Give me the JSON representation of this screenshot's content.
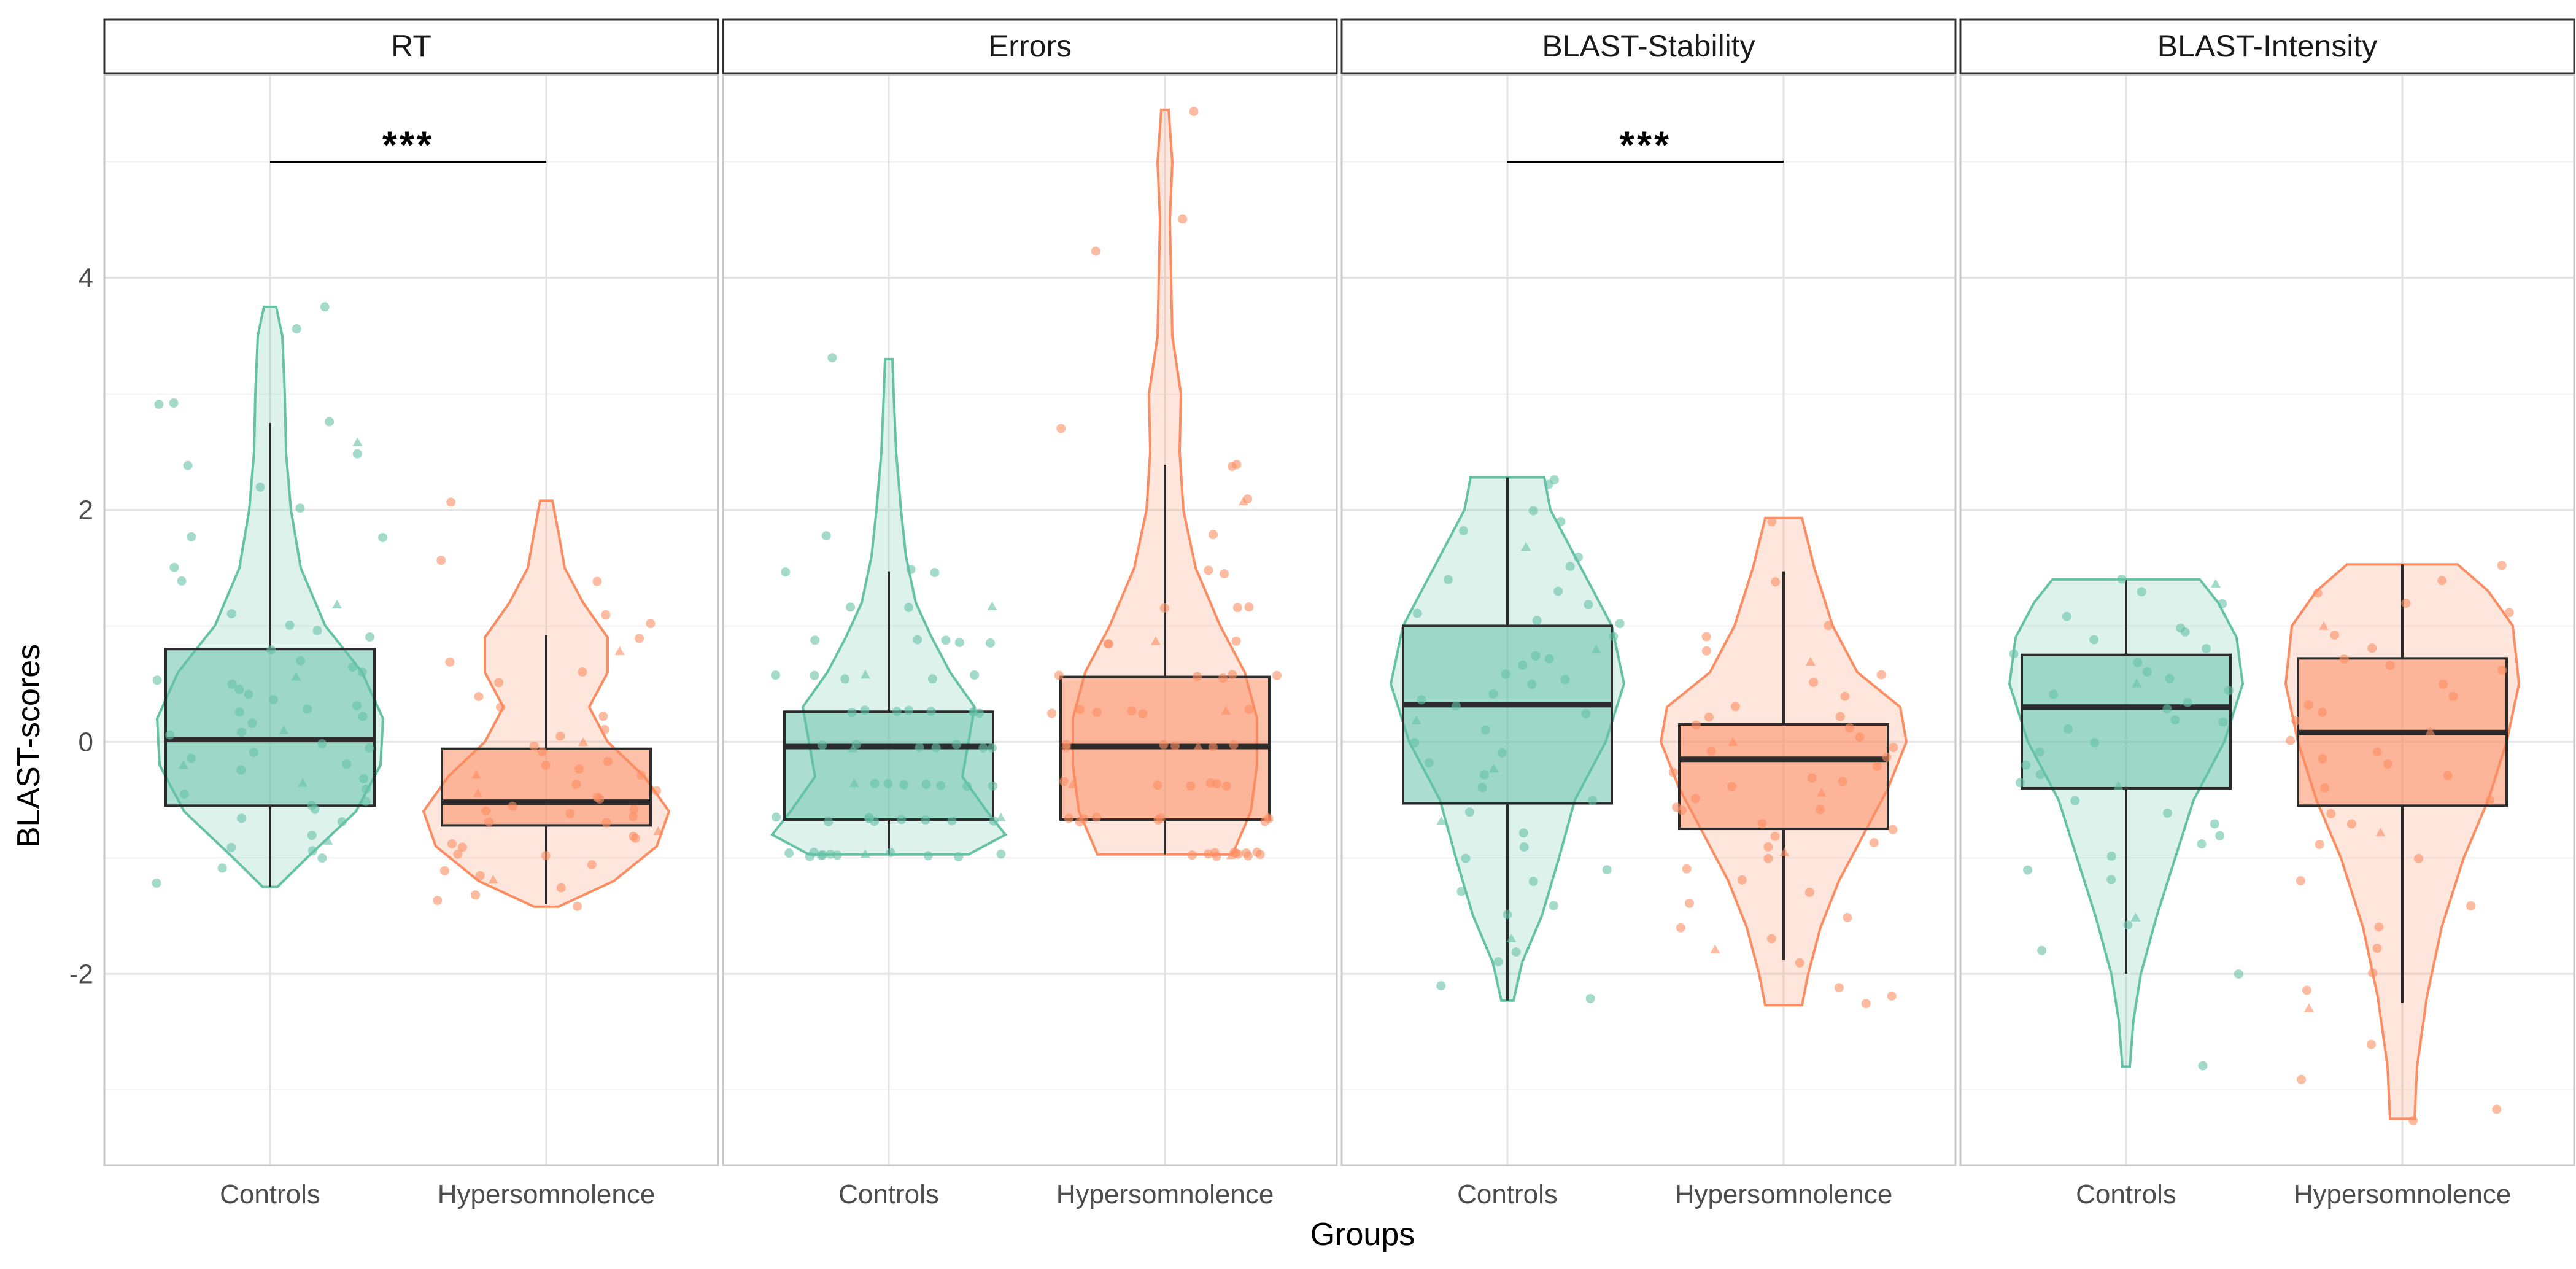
{
  "chart_data": {
    "type": "violin-box-jitter",
    "xlabel": "Groups",
    "ylabel": "BLAST-scores",
    "ylim": [
      -3.65,
      5.75
    ],
    "yticks": [
      -2,
      0,
      2,
      4
    ],
    "ytick_labels": [
      "-2",
      "0",
      "2",
      "4"
    ],
    "groups": [
      "Controls",
      "Hypersomnolence"
    ],
    "colors": {
      "Controls": "#66c2a5",
      "Hypersomnolence": "#fc8d62"
    },
    "facets": [
      {
        "title": "RT",
        "significance": "***",
        "sig_y": 5.0,
        "groups": [
          {
            "group": "Controls",
            "q1": -0.55,
            "median": 0.02,
            "q3": 0.8,
            "whisker_low": -1.25,
            "whisker_high": 2.75,
            "vmin": -1.25,
            "vmax": 3.75,
            "density": [
              [
                -1.25,
                0.06
              ],
              [
                -1.0,
                0.3
              ],
              [
                -0.6,
                0.7
              ],
              [
                -0.2,
                0.9
              ],
              [
                0.2,
                0.92
              ],
              [
                0.6,
                0.75
              ],
              [
                1.0,
                0.45
              ],
              [
                1.5,
                0.25
              ],
              [
                2.0,
                0.17
              ],
              [
                2.5,
                0.13
              ],
              [
                3.0,
                0.12
              ],
              [
                3.5,
                0.1
              ],
              [
                3.75,
                0.05
              ]
            ],
            "points": [
              -1.2,
              -1.1,
              -1.0,
              -0.9,
              -0.85,
              -0.8,
              -0.7,
              -0.65,
              -0.6,
              -0.55,
              -0.5,
              -0.45,
              -0.4,
              -0.35,
              -0.3,
              -0.25,
              -0.2,
              -0.15,
              -0.1,
              -0.05,
              0.0,
              0.05,
              0.1,
              0.15,
              0.2,
              0.25,
              0.3,
              0.35,
              0.4,
              0.45,
              0.5,
              0.55,
              0.6,
              0.65,
              0.7,
              0.8,
              0.9,
              0.95,
              1.0,
              1.1,
              1.2,
              1.4,
              1.5,
              1.75,
              1.75,
              2.0,
              2.2,
              2.4,
              2.5,
              2.6,
              2.75,
              2.9,
              2.9,
              3.55,
              3.75,
              -0.95,
              0.3,
              0.1,
              -0.2,
              0.55
            ]
          },
          {
            "group": "Hypersomnolence",
            "q1": -0.72,
            "median": -0.52,
            "q3": -0.06,
            "whisker_low": -1.4,
            "whisker_high": 0.92,
            "vmin": -1.42,
            "vmax": 2.08,
            "density": [
              [
                -1.42,
                0.1
              ],
              [
                -1.2,
                0.55
              ],
              [
                -0.9,
                0.9
              ],
              [
                -0.6,
                1.0
              ],
              [
                -0.3,
                0.8
              ],
              [
                0.0,
                0.5
              ],
              [
                0.3,
                0.35
              ],
              [
                0.6,
                0.5
              ],
              [
                0.9,
                0.5
              ],
              [
                1.2,
                0.3
              ],
              [
                1.5,
                0.15
              ],
              [
                1.8,
                0.1
              ],
              [
                2.08,
                0.05
              ]
            ],
            "points": [
              -1.4,
              -1.35,
              -1.3,
              -1.25,
              -1.2,
              -1.15,
              -1.1,
              -1.05,
              -1.0,
              -0.95,
              -0.9,
              -0.85,
              -0.8,
              -0.75,
              -0.7,
              -0.68,
              -0.65,
              -0.6,
              -0.58,
              -0.55,
              -0.5,
              -0.48,
              -0.45,
              -0.4,
              -0.35,
              -0.3,
              -0.25,
              -0.2,
              -0.15,
              -0.1,
              -0.05,
              0.0,
              0.05,
              0.1,
              0.2,
              0.3,
              0.4,
              0.5,
              0.6,
              0.7,
              0.8,
              0.9,
              1.0,
              1.1,
              1.4,
              1.55,
              2.05,
              -0.9,
              -0.6,
              -0.3
            ]
          }
        ]
      },
      {
        "title": "Errors",
        "significance": "",
        "groups": [
          {
            "group": "Controls",
            "q1": -0.67,
            "median": -0.04,
            "q3": 0.26,
            "whisker_low": -0.97,
            "whisker_high": 1.47,
            "vmin": -0.97,
            "vmax": 3.3,
            "density": [
              [
                -0.97,
                0.65
              ],
              [
                -0.8,
                0.95
              ],
              [
                -0.6,
                0.8
              ],
              [
                -0.3,
                0.6
              ],
              [
                0.0,
                0.65
              ],
              [
                0.3,
                0.7
              ],
              [
                0.6,
                0.5
              ],
              [
                0.9,
                0.35
              ],
              [
                1.2,
                0.22
              ],
              [
                1.6,
                0.14
              ],
              [
                2.0,
                0.1
              ],
              [
                2.5,
                0.06
              ],
              [
                3.0,
                0.04
              ],
              [
                3.3,
                0.03
              ]
            ],
            "points": [
              -0.97,
              -0.97,
              -0.97,
              -0.97,
              -0.97,
              -0.97,
              -0.97,
              -0.97,
              -0.97,
              -0.97,
              -0.97,
              -0.97,
              -0.67,
              -0.67,
              -0.67,
              -0.67,
              -0.67,
              -0.67,
              -0.67,
              -0.67,
              -0.67,
              -0.67,
              -0.36,
              -0.36,
              -0.36,
              -0.36,
              -0.36,
              -0.36,
              -0.36,
              -0.36,
              -0.04,
              -0.04,
              -0.04,
              -0.04,
              -0.04,
              -0.04,
              -0.04,
              -0.04,
              0.26,
              0.26,
              0.26,
              0.26,
              0.26,
              0.26,
              0.26,
              0.26,
              0.56,
              0.56,
              0.56,
              0.56,
              0.56,
              0.56,
              0.86,
              0.86,
              0.86,
              0.86,
              0.86,
              1.17,
              1.17,
              1.17,
              1.47,
              1.47,
              1.47,
              1.78,
              3.3
            ]
          },
          {
            "group": "Hypersomnolence",
            "q1": -0.67,
            "median": -0.04,
            "q3": 0.56,
            "whisker_low": -0.97,
            "whisker_high": 2.39,
            "vmin": -0.97,
            "vmax": 5.45,
            "density": [
              [
                -0.97,
                0.55
              ],
              [
                -0.6,
                0.7
              ],
              [
                -0.2,
                0.75
              ],
              [
                0.2,
                0.75
              ],
              [
                0.6,
                0.65
              ],
              [
                1.0,
                0.45
              ],
              [
                1.5,
                0.25
              ],
              [
                2.0,
                0.15
              ],
              [
                2.5,
                0.12
              ],
              [
                3.0,
                0.13
              ],
              [
                3.5,
                0.06
              ],
              [
                4.0,
                0.05
              ],
              [
                4.5,
                0.04
              ],
              [
                5.0,
                0.06
              ],
              [
                5.45,
                0.03
              ]
            ],
            "points": [
              -0.97,
              -0.97,
              -0.97,
              -0.97,
              -0.97,
              -0.97,
              -0.97,
              -0.97,
              -0.97,
              -0.97,
              -0.97,
              -0.97,
              -0.67,
              -0.67,
              -0.67,
              -0.67,
              -0.67,
              -0.67,
              -0.67,
              -0.67,
              -0.67,
              -0.36,
              -0.36,
              -0.36,
              -0.36,
              -0.36,
              -0.36,
              -0.36,
              -0.04,
              -0.04,
              -0.04,
              -0.04,
              -0.04,
              -0.04,
              -0.04,
              0.26,
              0.26,
              0.26,
              0.26,
              0.26,
              0.26,
              0.26,
              0.56,
              0.56,
              0.56,
              0.56,
              0.56,
              0.86,
              0.86,
              0.86,
              0.86,
              1.17,
              1.17,
              1.17,
              1.47,
              1.47,
              1.78,
              2.08,
              2.08,
              2.39,
              2.39,
              2.69,
              4.21,
              4.52,
              5.45
            ]
          }
        ]
      },
      {
        "title": "BLAST-Stability",
        "significance": "***",
        "sig_y": 5.0,
        "groups": [
          {
            "group": "Controls",
            "q1": -0.53,
            "median": 0.32,
            "q3": 1.0,
            "whisker_low": -2.23,
            "whisker_high": 2.28,
            "vmin": -2.23,
            "vmax": 2.28,
            "density": [
              [
                -2.23,
                0.05
              ],
              [
                -1.9,
                0.12
              ],
              [
                -1.5,
                0.28
              ],
              [
                -1.0,
                0.42
              ],
              [
                -0.5,
                0.55
              ],
              [
                0.0,
                0.8
              ],
              [
                0.5,
                0.95
              ],
              [
                1.0,
                0.85
              ],
              [
                1.5,
                0.6
              ],
              [
                2.0,
                0.35
              ],
              [
                2.28,
                0.3
              ]
            ],
            "points": [
              -2.2,
              -2.1,
              -1.9,
              -1.8,
              -1.7,
              -1.5,
              -1.4,
              -1.3,
              -1.2,
              -1.1,
              -1.0,
              -0.9,
              -0.8,
              -0.7,
              -0.6,
              -0.5,
              -0.4,
              -0.3,
              -0.2,
              -0.1,
              0.0,
              0.1,
              0.2,
              0.3,
              0.35,
              0.4,
              0.5,
              0.55,
              0.6,
              0.7,
              0.75,
              0.8,
              0.9,
              1.0,
              1.1,
              1.2,
              1.3,
              1.4,
              1.5,
              1.6,
              1.7,
              1.8,
              1.9,
              2.0,
              2.2,
              2.28,
              0.25,
              0.65,
              1.05,
              -0.25
            ]
          },
          {
            "group": "Hypersomnolence",
            "q1": -0.75,
            "median": -0.15,
            "q3": 0.15,
            "whisker_low": -1.88,
            "whisker_high": 1.47,
            "vmin": -2.27,
            "vmax": 1.93,
            "density": [
              [
                -2.27,
                0.15
              ],
              [
                -2.0,
                0.2
              ],
              [
                -1.6,
                0.3
              ],
              [
                -1.2,
                0.45
              ],
              [
                -0.8,
                0.65
              ],
              [
                -0.4,
                0.85
              ],
              [
                0.0,
                1.0
              ],
              [
                0.3,
                0.95
              ],
              [
                0.6,
                0.6
              ],
              [
                1.0,
                0.4
              ],
              [
                1.5,
                0.25
              ],
              [
                1.93,
                0.15
              ]
            ],
            "points": [
              -2.25,
              -2.2,
              -2.1,
              -1.9,
              -1.8,
              -1.7,
              -1.6,
              -1.5,
              -1.4,
              -1.3,
              -1.2,
              -1.1,
              -1.0,
              -0.95,
              -0.9,
              -0.85,
              -0.8,
              -0.75,
              -0.7,
              -0.6,
              -0.55,
              -0.5,
              -0.45,
              -0.4,
              -0.35,
              -0.3,
              -0.25,
              -0.2,
              -0.15,
              -0.1,
              -0.05,
              0.0,
              0.05,
              0.1,
              0.15,
              0.2,
              0.3,
              0.4,
              0.5,
              0.6,
              0.7,
              0.8,
              0.9,
              1.0,
              1.4,
              1.9,
              -0.6,
              0.2
            ]
          }
        ]
      },
      {
        "title": "BLAST-Intensity",
        "significance": "",
        "groups": [
          {
            "group": "Controls",
            "q1": -0.4,
            "median": 0.3,
            "q3": 0.75,
            "whisker_low": -2.0,
            "whisker_high": 1.4,
            "vmin": -2.8,
            "vmax": 1.4,
            "density": [
              [
                -2.8,
                0.03
              ],
              [
                -2.4,
                0.06
              ],
              [
                -2.0,
                0.12
              ],
              [
                -1.5,
                0.25
              ],
              [
                -1.0,
                0.4
              ],
              [
                -0.5,
                0.55
              ],
              [
                0.0,
                0.8
              ],
              [
                0.5,
                0.95
              ],
              [
                0.9,
                0.9
              ],
              [
                1.2,
                0.75
              ],
              [
                1.4,
                0.6
              ]
            ],
            "points": [
              -2.8,
              -2.0,
              -1.8,
              -1.6,
              -1.5,
              -1.2,
              -1.1,
              -1.0,
              -0.9,
              -0.8,
              -0.7,
              -0.6,
              -0.5,
              -0.4,
              -0.3,
              -0.2,
              -0.1,
              0.0,
              0.1,
              0.2,
              0.3,
              0.4,
              0.5,
              0.6,
              0.7,
              0.8,
              0.9,
              1.0,
              1.1,
              1.2,
              1.3,
              1.35,
              1.4,
              0.35,
              0.55,
              0.75,
              0.95,
              -0.35,
              0.15,
              0.45
            ]
          },
          {
            "group": "Hypersomnolence",
            "q1": -0.55,
            "median": 0.08,
            "q3": 0.72,
            "whisker_low": -2.25,
            "whisker_high": 1.53,
            "vmin": -3.25,
            "vmax": 1.53,
            "density": [
              [
                -3.25,
                0.1
              ],
              [
                -2.8,
                0.12
              ],
              [
                -2.2,
                0.2
              ],
              [
                -1.6,
                0.32
              ],
              [
                -1.0,
                0.5
              ],
              [
                -0.5,
                0.7
              ],
              [
                0.0,
                0.85
              ],
              [
                0.5,
                0.95
              ],
              [
                1.0,
                0.9
              ],
              [
                1.3,
                0.7
              ],
              [
                1.53,
                0.45
              ]
            ],
            "points": [
              -3.25,
              -3.15,
              -2.9,
              -2.6,
              -2.3,
              -2.15,
              -2.0,
              -1.8,
              -1.6,
              -1.4,
              -1.2,
              -1.0,
              -0.9,
              -0.8,
              -0.7,
              -0.6,
              -0.5,
              -0.4,
              -0.3,
              -0.2,
              -0.1,
              0.0,
              0.1,
              0.2,
              0.3,
              0.4,
              0.5,
              0.6,
              0.7,
              0.8,
              0.9,
              1.0,
              1.1,
              1.2,
              1.3,
              1.4,
              1.53,
              0.25,
              0.65,
              -0.15
            ]
          }
        ]
      }
    ]
  }
}
